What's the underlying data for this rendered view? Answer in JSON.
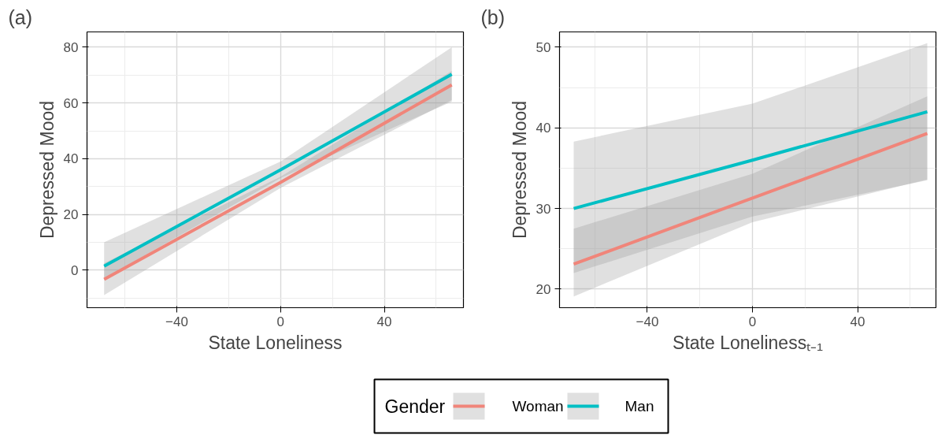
{
  "chart_data": [
    {
      "type": "line",
      "annotations": [
        "(a)"
      ],
      "xlabel": "State Loneliness",
      "ylabel": "Depressed Mood",
      "xlim": [
        -74.6,
        70.5
      ],
      "ylim": [
        -13.5,
        85.5
      ],
      "xticks": [
        -40,
        0,
        40
      ],
      "yticks": [
        0,
        20,
        40,
        60,
        80
      ],
      "grid": true,
      "legend": "bottom",
      "legend_title": "Gender",
      "series": [
        {
          "name": "Woman",
          "color": "#f0857a",
          "x": [
            -68,
            0,
            66
          ],
          "values": [
            -3.3,
            31.5,
            66.5
          ],
          "lower": [
            -9,
            29.5,
            61
          ],
          "upper": [
            2.5,
            33.5,
            71.5
          ]
        },
        {
          "name": "Man",
          "color": "#00bfc4",
          "x": [
            -68,
            0,
            66
          ],
          "values": [
            1.4,
            36,
            70.3
          ],
          "lower": [
            -3,
            33,
            60.5
          ],
          "upper": [
            10,
            39,
            80
          ]
        }
      ]
    },
    {
      "type": "line",
      "annotations": [
        "(b)"
      ],
      "xlabel": "State Lonelinessₜ₋₁",
      "ylabel": "Depressed Mood",
      "xlim": [
        -73.4,
        69.8
      ],
      "ylim": [
        17.7,
        51.9
      ],
      "xticks": [
        -40,
        0,
        40
      ],
      "yticks": [
        20,
        30,
        40,
        50
      ],
      "grid": true,
      "series": [
        {
          "color": "#f0857a",
          "x": [
            -68,
            0,
            66.5
          ],
          "values": [
            23.1,
            31.3,
            39.3
          ],
          "lower": [
            19.1,
            28.3,
            33.6
          ],
          "upper": [
            27.5,
            34.3,
            43.9
          ]
        },
        {
          "color": "#00bfc4",
          "x": [
            -68,
            0,
            66.5
          ],
          "values": [
            30,
            36,
            42
          ],
          "lower": [
            22,
            29,
            33.5
          ],
          "upper": [
            38.3,
            43,
            50.5
          ]
        }
      ]
    }
  ]
}
